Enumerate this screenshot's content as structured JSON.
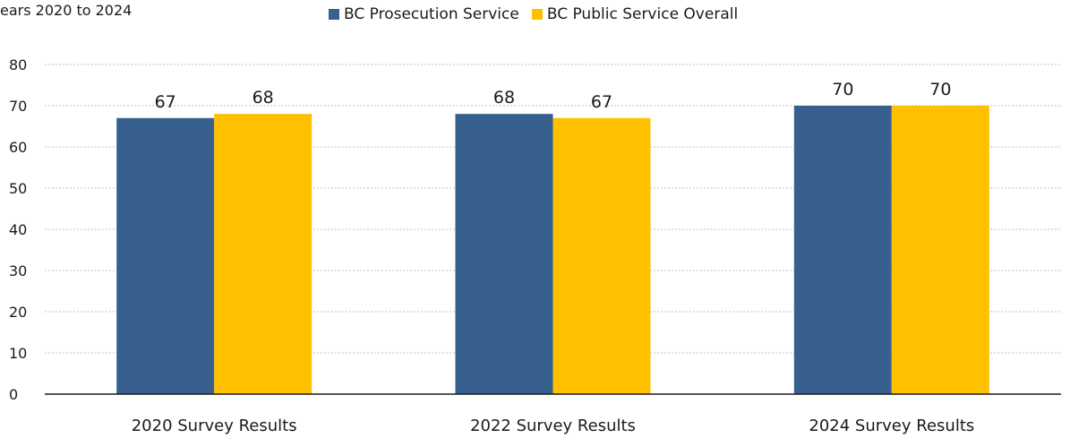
{
  "subtitle": "ears 2020 to 2024",
  "chart_data": {
    "type": "bar",
    "categories": [
      "2020 Survey Results",
      "2022 Survey Results",
      "2024 Survey Results"
    ],
    "series": [
      {
        "name": "BC Prosecution Service",
        "values": [
          67,
          68,
          70
        ],
        "color": "#37608f"
      },
      {
        "name": "BC Public Service Overall",
        "values": [
          68,
          67,
          70
        ],
        "color": "#ffc000"
      }
    ],
    "ylim": [
      0,
      80
    ],
    "yticks": [
      "0",
      "10",
      "20",
      "30",
      "40",
      "50",
      "60",
      "70",
      "80"
    ],
    "grid": true,
    "legend_position": "top-center",
    "data_labels": true
  }
}
